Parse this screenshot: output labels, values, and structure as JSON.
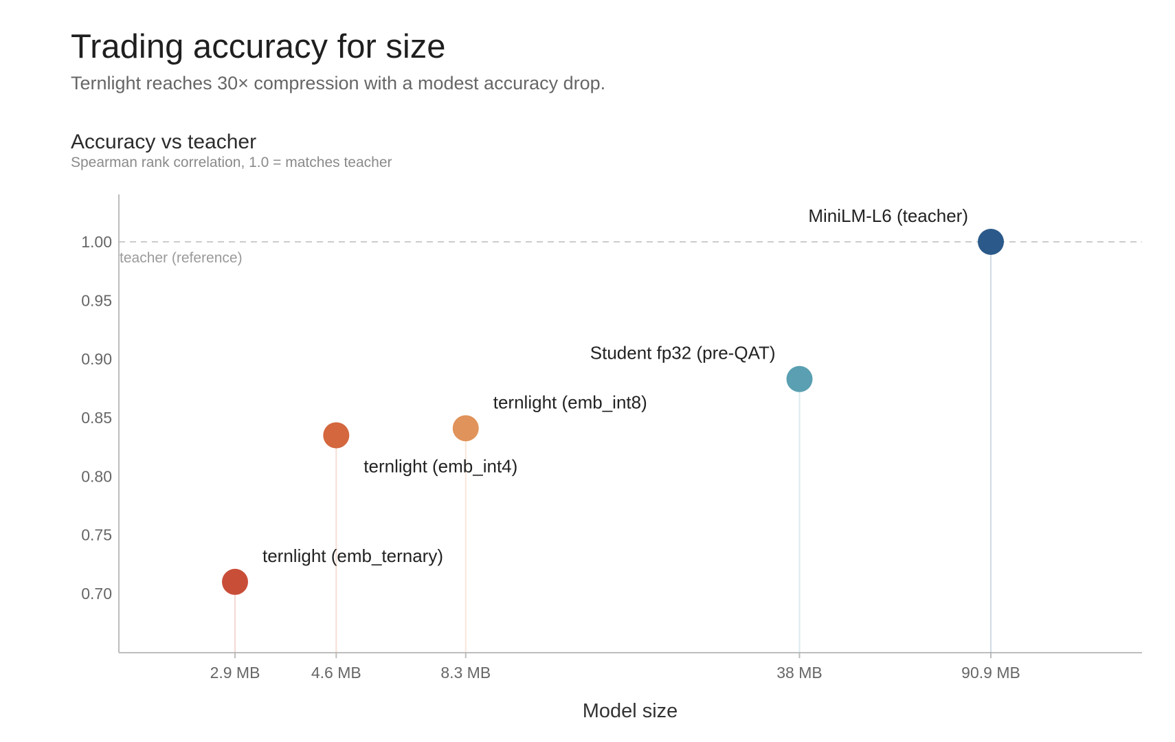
{
  "header": {
    "title": "Trading accuracy for size",
    "subtitle": "Ternlight reaches 30× compression with a modest accuracy drop."
  },
  "panel": {
    "title": "Accuracy vs teacher",
    "subtitle": "Spearman rank correlation, 1.0 = matches teacher"
  },
  "chart_data": {
    "type": "scatter",
    "title": "Accuracy vs teacher",
    "subtitle": "Spearman rank correlation, 1.0 = matches teacher",
    "xlabel": "Model size",
    "ylabel": "",
    "x_scale": "log",
    "xlim": [
      1.6,
      250
    ],
    "ylim": [
      0.65,
      1.04
    ],
    "y_ticks": [
      "1.00",
      "0.95",
      "0.90",
      "0.85",
      "0.80",
      "0.75",
      "0.70"
    ],
    "grid": false,
    "stems": true,
    "reference_line": {
      "y": 1.0,
      "label": "teacher (reference)",
      "style": "dashed",
      "color": "#bbbbbb"
    },
    "points": [
      {
        "label": "ternlight (emb_ternary)",
        "x": 2.9,
        "x_label": "2.9 MB",
        "y": 0.71,
        "color": "#c94e38"
      },
      {
        "label": "ternlight (emb_int4)",
        "x": 4.6,
        "x_label": "4.6 MB",
        "y": 0.835,
        "color": "#d4673e"
      },
      {
        "label": "ternlight (emb_int8)",
        "x": 8.3,
        "x_label": "8.3 MB",
        "y": 0.841,
        "color": "#e0935a"
      },
      {
        "label": "Student fp32 (pre-QAT)",
        "x": 38,
        "x_label": "38 MB",
        "y": 0.883,
        "color": "#5a9fb2"
      },
      {
        "label": "MiniLM-L6 (teacher)",
        "x": 90.9,
        "x_label": "90.9 MB",
        "y": 1.0,
        "color": "#2b5a8a"
      }
    ]
  }
}
